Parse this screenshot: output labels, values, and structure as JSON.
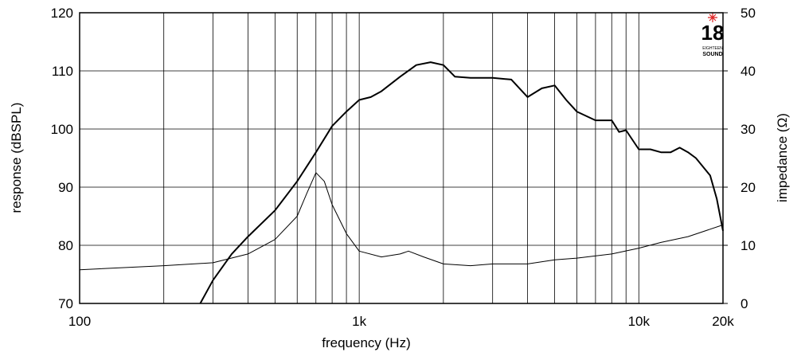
{
  "chart_data": {
    "type": "line",
    "x_scale": "log",
    "xlabel": "frequency (Hz)",
    "ylabel": "response (dBSPL)",
    "y2label": "impedance (Ω)",
    "xlim": [
      100,
      20000
    ],
    "xticks": [
      100,
      {
        "value": 1000,
        "label": "1k"
      },
      {
        "value": 10000,
        "label": "10k"
      },
      {
        "value": 20000,
        "label": "20k"
      }
    ],
    "x_minor_grid": [
      200,
      300,
      400,
      500,
      600,
      700,
      800,
      900,
      2000,
      3000,
      4000,
      5000,
      6000,
      7000,
      8000,
      9000
    ],
    "ylim": [
      70,
      120
    ],
    "yticks": [
      70,
      80,
      90,
      100,
      110,
      120
    ],
    "y2lim": [
      0,
      50
    ],
    "y2ticks": [
      0,
      10,
      20,
      30,
      40,
      50
    ],
    "grid": true,
    "series": [
      {
        "color": "#000000",
        "width": 2,
        "x": [
          270,
          300,
          350,
          400,
          500,
          600,
          700,
          800,
          900,
          1000,
          1100,
          1200,
          1400,
          1600,
          1800,
          2000,
          2200,
          2500,
          3000,
          3500,
          4000,
          4500,
          5000,
          5500,
          6000,
          7000,
          8000,
          8500,
          9000,
          10000,
          11000,
          12000,
          13000,
          14000,
          15000,
          16000,
          18000,
          19000,
          20000
        ],
        "values": [
          70,
          74,
          78.5,
          81.5,
          86,
          91,
          96,
          100.5,
          103,
          105,
          105.5,
          106.5,
          109,
          111,
          111.5,
          111,
          109,
          108.8,
          108.8,
          108.5,
          105.5,
          107,
          107.5,
          105,
          103,
          101.5,
          101.5,
          99.5,
          99.8,
          96.5,
          96.5,
          96,
          96,
          96.8,
          96,
          95,
          92,
          88,
          82.5
        ]
      },
      {
        "color": "#000000",
        "width": 1,
        "axis": "y2",
        "x": [
          100,
          200,
          300,
          400,
          500,
          600,
          650,
          700,
          750,
          800,
          900,
          1000,
          1200,
          1400,
          1500,
          1700,
          2000,
          2500,
          3000,
          4000,
          5000,
          6000,
          8000,
          10000,
          12000,
          15000,
          20000
        ],
        "values": [
          5.8,
          6.5,
          7,
          8.5,
          11,
          15,
          19,
          22.5,
          21,
          17,
          12,
          9,
          8,
          8.5,
          9,
          8,
          6.8,
          6.5,
          6.8,
          6.8,
          7.5,
          7.8,
          8.5,
          9.5,
          10.5,
          11.5,
          13.5
        ]
      }
    ],
    "logo": {
      "number": "18",
      "small": "EIGHTEEN",
      "brand": "SOUND"
    }
  }
}
